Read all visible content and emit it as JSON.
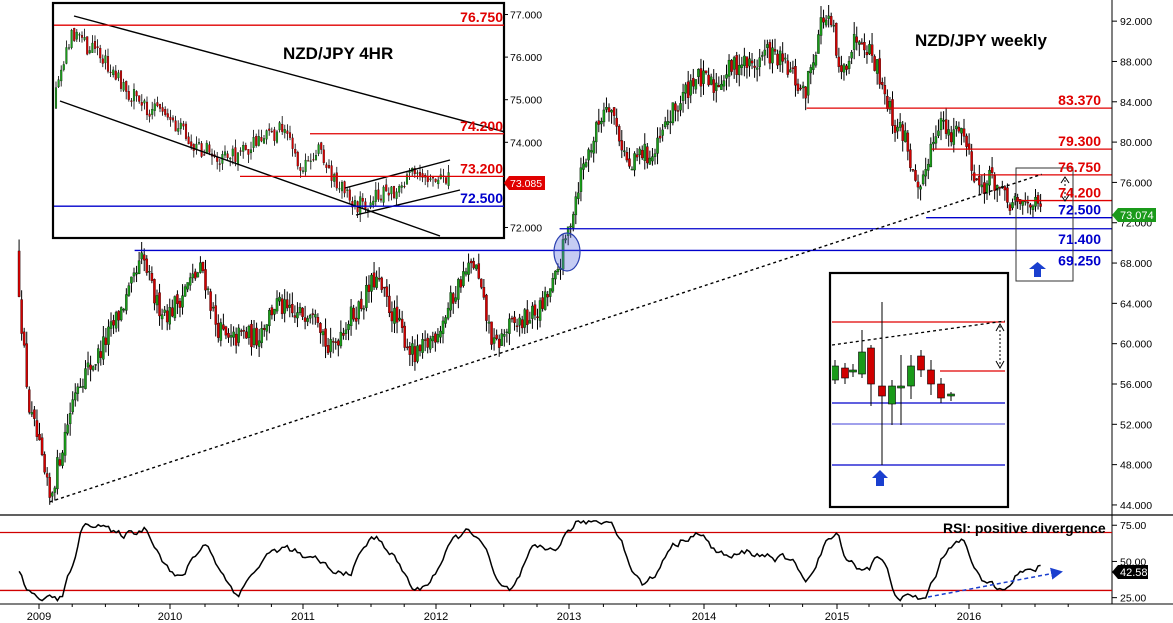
{
  "chart_data": [
    {
      "type": "candlestick",
      "title": "NZD/JPY weekly",
      "x_ticks": [
        "2009",
        "2010",
        "2011",
        "2012",
        "2013",
        "2014",
        "2015",
        "2016"
      ],
      "y_ticks": [
        "44.000",
        "48.000",
        "52.000",
        "56.000",
        "60.000",
        "64.000",
        "68.000",
        "72.000",
        "76.000",
        "80.000",
        "84.000",
        "88.000",
        "92.000"
      ],
      "ylim": [
        43.3,
        93.9
      ],
      "price_path": [
        [
          2008.85,
          69.0
        ],
        [
          2008.9,
          60.0
        ],
        [
          2008.95,
          53.0
        ],
        [
          2009.0,
          51.0
        ],
        [
          2009.05,
          47.5
        ],
        [
          2009.1,
          44.5
        ],
        [
          2009.18,
          49.0
        ],
        [
          2009.3,
          56.0
        ],
        [
          2009.45,
          58.5
        ],
        [
          2009.55,
          61.0
        ],
        [
          2009.7,
          65.0
        ],
        [
          2009.8,
          68.5
        ],
        [
          2009.9,
          64.0
        ],
        [
          2010.0,
          63.0
        ],
        [
          2010.15,
          66.0
        ],
        [
          2010.25,
          67.5
        ],
        [
          2010.35,
          62.0
        ],
        [
          2010.45,
          60.0
        ],
        [
          2010.55,
          61.0
        ],
        [
          2010.65,
          60.5
        ],
        [
          2010.8,
          64.0
        ],
        [
          2010.95,
          62.5
        ],
        [
          2011.1,
          64.0
        ],
        [
          2011.2,
          59.0
        ],
        [
          2011.3,
          61.5
        ],
        [
          2011.45,
          64.0
        ],
        [
          2011.55,
          66.5
        ],
        [
          2011.7,
          62.5
        ],
        [
          2011.85,
          58.5
        ],
        [
          2011.95,
          60.0
        ],
        [
          2012.05,
          62.0
        ],
        [
          2012.2,
          66.5
        ],
        [
          2012.3,
          68.0
        ],
        [
          2012.38,
          63.0
        ],
        [
          2012.45,
          59.5
        ],
        [
          2012.55,
          61.5
        ],
        [
          2012.7,
          62.5
        ],
        [
          2012.8,
          63.5
        ],
        [
          2012.9,
          66.0
        ],
        [
          2013.0,
          71.0
        ],
        [
          2013.1,
          77.0
        ],
        [
          2013.2,
          80.5
        ],
        [
          2013.3,
          84.5
        ],
        [
          2013.37,
          81.5
        ],
        [
          2013.47,
          77.0
        ],
        [
          2013.55,
          79.0
        ],
        [
          2013.65,
          78.5
        ],
        [
          2013.75,
          82.0
        ],
        [
          2013.85,
          84.0
        ],
        [
          2013.95,
          86.5
        ],
        [
          2014.1,
          85.5
        ],
        [
          2014.2,
          87.0
        ],
        [
          2014.3,
          88.0
        ],
        [
          2014.4,
          87.5
        ],
        [
          2014.5,
          89.0
        ],
        [
          2014.6,
          88.0
        ],
        [
          2014.7,
          86.5
        ],
        [
          2014.78,
          84.5
        ],
        [
          2014.85,
          88.5
        ],
        [
          2014.92,
          92.5
        ],
        [
          2015.0,
          91.0
        ],
        [
          2015.05,
          86.0
        ],
        [
          2015.12,
          89.0
        ],
        [
          2015.2,
          91.0
        ],
        [
          2015.3,
          88.5
        ],
        [
          2015.37,
          86.0
        ],
        [
          2015.45,
          82.0
        ],
        [
          2015.55,
          80.5
        ],
        [
          2015.6,
          76.5
        ],
        [
          2015.65,
          74.0
        ],
        [
          2015.72,
          79.0
        ],
        [
          2015.8,
          82.5
        ],
        [
          2015.88,
          80.0
        ],
        [
          2015.95,
          82.0
        ],
        [
          2016.02,
          79.0
        ],
        [
          2016.1,
          75.5
        ],
        [
          2016.2,
          76.5
        ],
        [
          2016.3,
          74.0
        ],
        [
          2016.4,
          73.5
        ],
        [
          2016.48,
          74.5
        ],
        [
          2016.55,
          73.0
        ]
      ],
      "levels": [
        {
          "label": "83.370",
          "value": 83.37,
          "from": 2014.78,
          "color": "#e00000"
        },
        {
          "label": "79.300",
          "value": 79.3,
          "from": 2015.72,
          "color": "#e00000"
        },
        {
          "label": "76.750",
          "value": 76.75,
          "from": 2016.02,
          "color": "#e00000"
        },
        {
          "label": "74.200",
          "value": 74.2,
          "from": 2016.35,
          "color": "#e00000"
        },
        {
          "label": "72.500",
          "value": 72.5,
          "from": 2015.68,
          "color": "#0000cc"
        },
        {
          "label": "71.400",
          "value": 71.4,
          "from": 2012.92,
          "color": "#0000cc"
        },
        {
          "label": "69.250",
          "value": 69.25,
          "from": 2009.72,
          "color": "#0000cc"
        }
      ],
      "trendline": {
        "from": [
          2009.08,
          44.3
        ],
        "to": [
          2016.55,
          76.8
        ],
        "style": "dashed"
      },
      "last_price": {
        "label": "73.074",
        "value": 73.074,
        "color": "#1a9a1a"
      }
    },
    {
      "type": "candlestick",
      "title": "NZD/JPY 4HR",
      "y_ticks": [
        "72.000",
        "73.000",
        "74.000",
        "75.000",
        "76.000",
        "77.000"
      ],
      "ylim": [
        71.8,
        77.2
      ],
      "levels": [
        {
          "label": "76.750",
          "value": 76.75,
          "color": "#e00000"
        },
        {
          "label": "74.200",
          "value": 74.2,
          "color": "#e00000"
        },
        {
          "label": "73.200",
          "value": 73.2,
          "color": "#e00000"
        },
        {
          "label": "72.500",
          "value": 72.5,
          "color": "#0000cc"
        }
      ],
      "last_price": {
        "label": "73.085",
        "value": 73.085,
        "color": "#e00000"
      }
    },
    {
      "type": "line",
      "title": "RSI: positive divergence",
      "y_ticks": [
        "25.00",
        "50.00",
        "75.00"
      ],
      "ylim": [
        22,
        80
      ],
      "levels": [
        70,
        30
      ],
      "last_value": {
        "label": "42.58",
        "value": 42.58
      }
    }
  ]
}
